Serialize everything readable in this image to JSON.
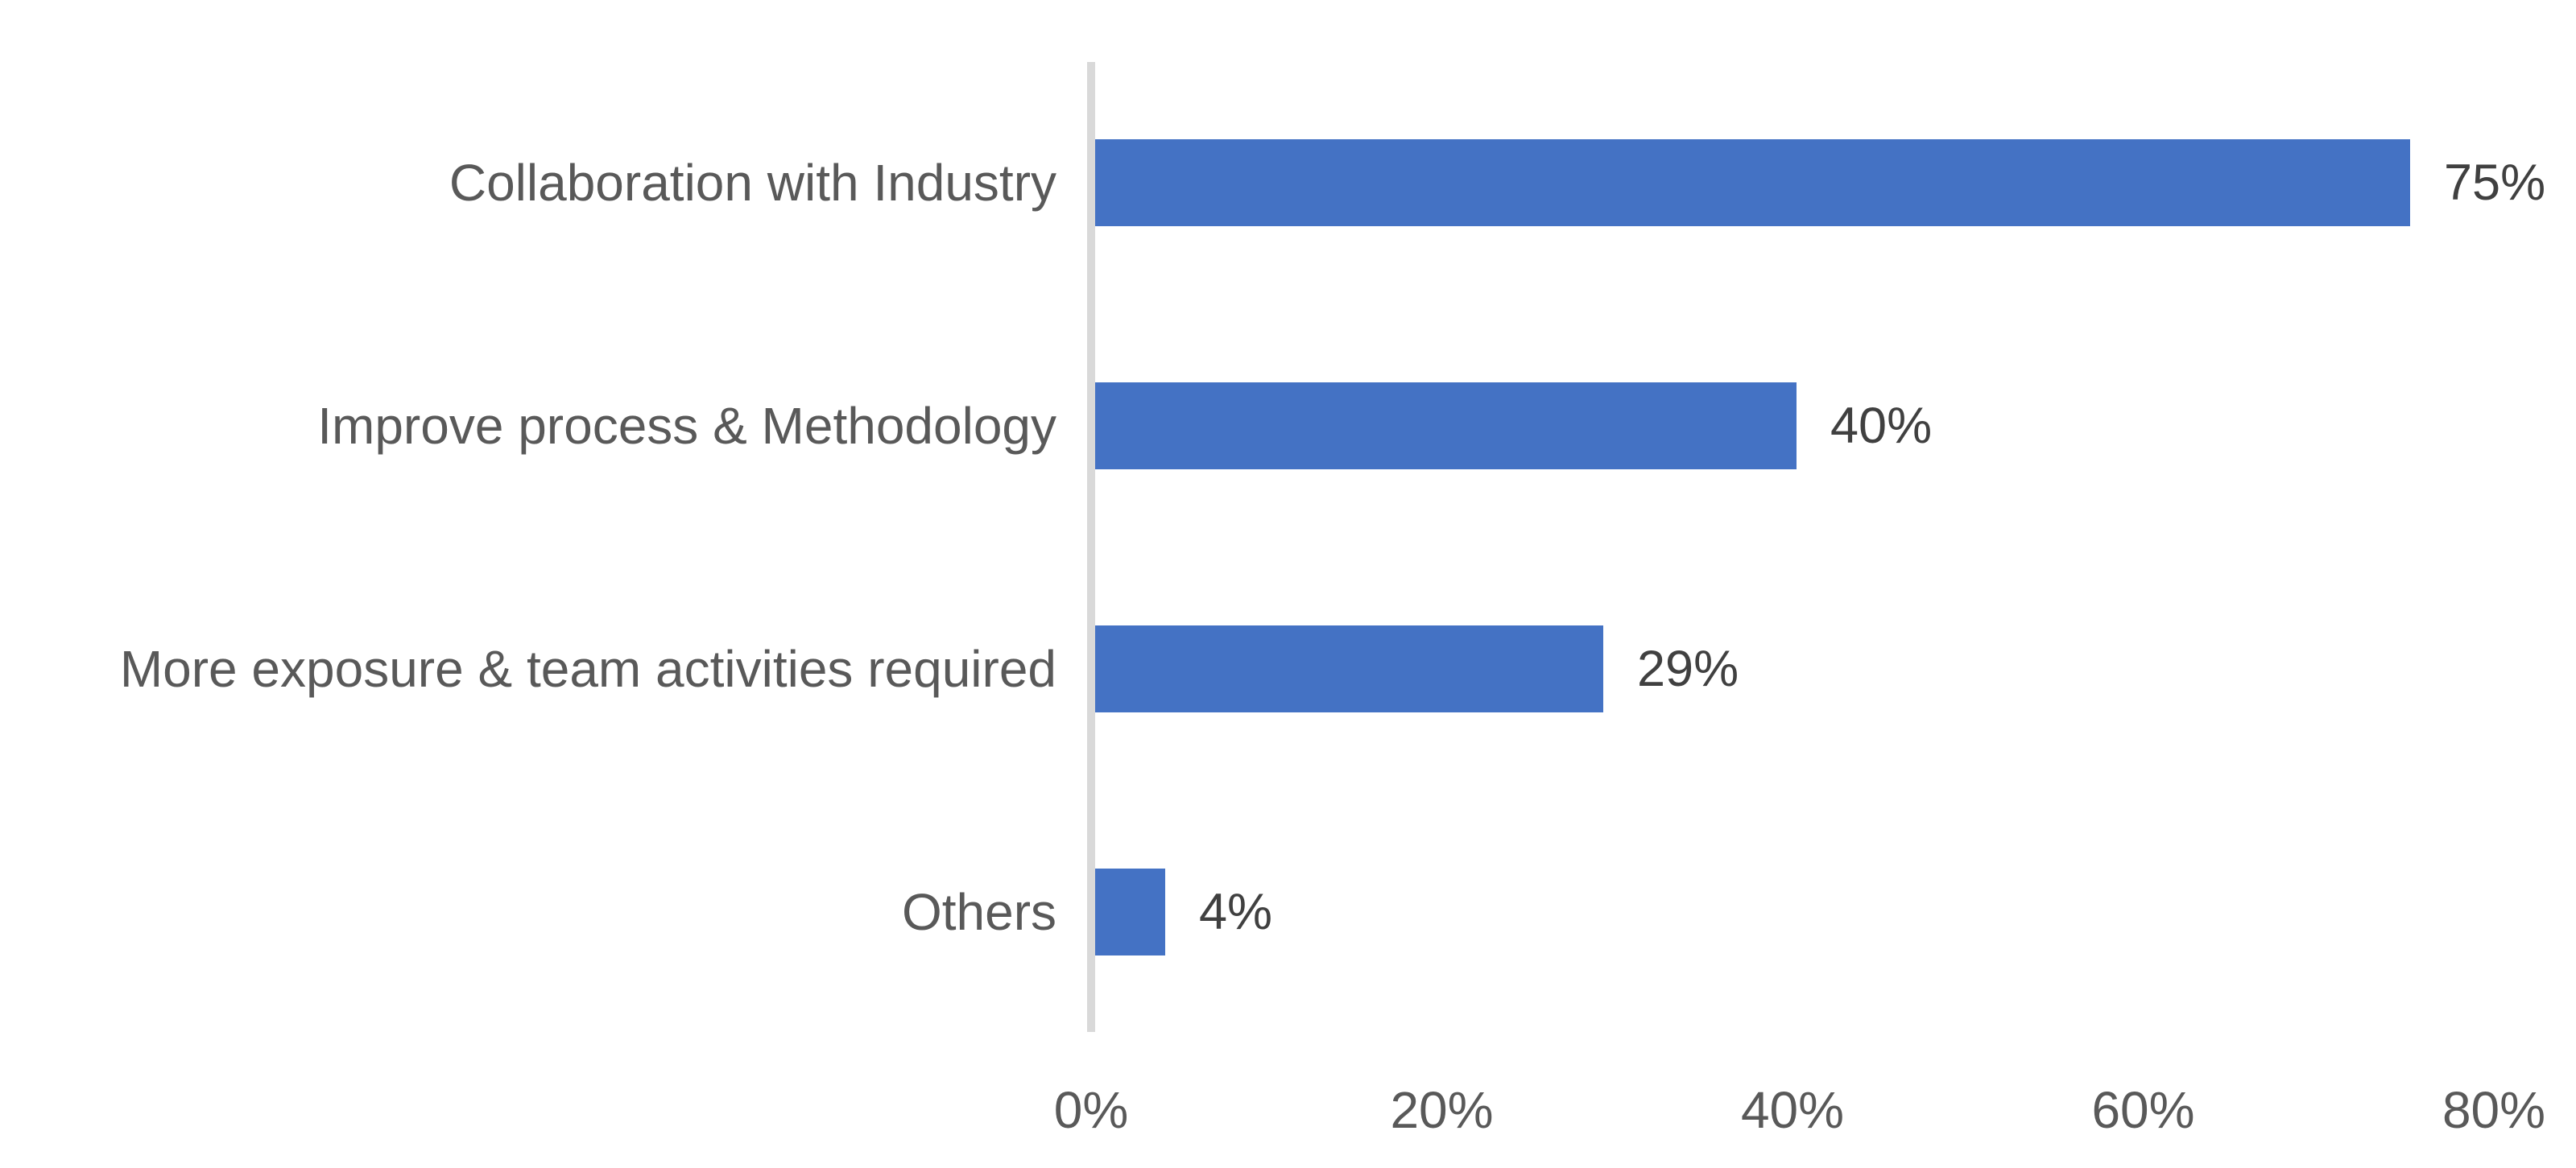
{
  "chart_data": {
    "type": "bar",
    "orientation": "horizontal",
    "title": "",
    "xlabel": "",
    "ylabel": "",
    "categories": [
      "Collaboration with Industry",
      "Improve process & Methodology",
      "More exposure & team activities required",
      "Others"
    ],
    "values": [
      75,
      40,
      29,
      4
    ],
    "data_labels": [
      "75%",
      "40%",
      "29%",
      "4%"
    ],
    "xlim": [
      0,
      80
    ],
    "x_tick_values": [
      0,
      20,
      40,
      60,
      80
    ],
    "x_tick_labels": [
      "0%",
      "20%",
      "40%",
      "60%",
      "80%"
    ],
    "grid": false,
    "legend": false,
    "colors": {
      "bar": "#4472C4",
      "axis_line": "#D9D9D9",
      "category_label": "#595959",
      "data_label": "#404040",
      "tick_label": "#595959",
      "background": "#FFFFFF"
    }
  }
}
